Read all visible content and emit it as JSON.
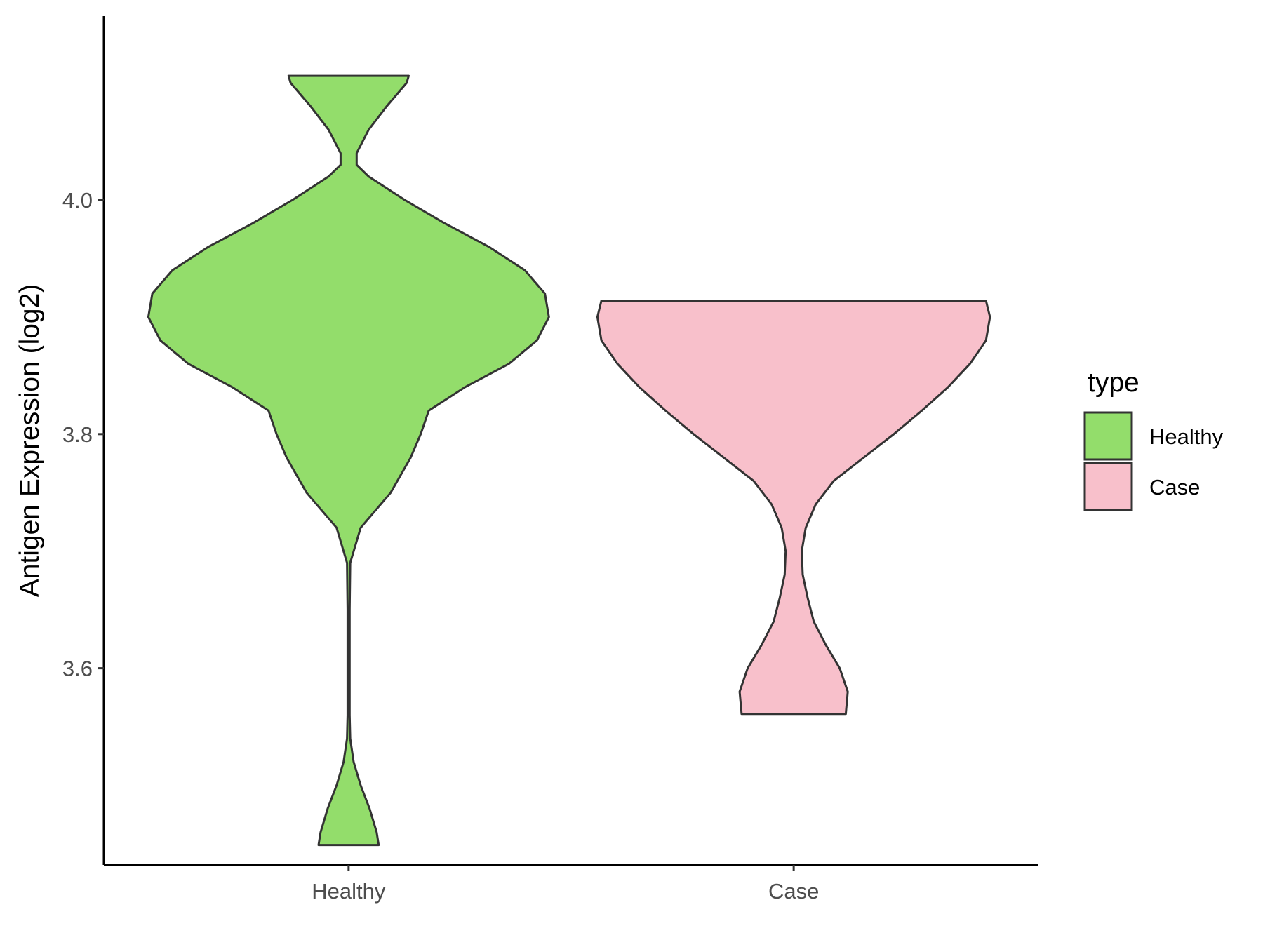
{
  "chart_data": {
    "type": "violin",
    "xlabel": "",
    "ylabel": "Antigen Expression (log2)",
    "categories": [
      "Healthy",
      "Case"
    ],
    "y_ticks": [
      "3.6",
      "3.8",
      "4.0"
    ],
    "y_tick_values": [
      3.6,
      3.8,
      4.0
    ],
    "ylim": [
      3.432,
      4.157
    ],
    "grid": false,
    "legend": {
      "title": "type",
      "position": "right",
      "entries": [
        {
          "label": "Healthy",
          "color": "#93DD6B"
        },
        {
          "label": "Case",
          "color": "#F8C0CB"
        }
      ]
    },
    "series": [
      {
        "category": "Healthy",
        "color": "#93DD6B",
        "y_min": 3.449,
        "y_max": 4.106,
        "profile": [
          [
            3.449,
            0.15
          ],
          [
            3.46,
            0.14
          ],
          [
            3.48,
            0.105
          ],
          [
            3.5,
            0.06
          ],
          [
            3.52,
            0.025
          ],
          [
            3.54,
            0.008
          ],
          [
            3.56,
            0.005
          ],
          [
            3.6,
            0.005
          ],
          [
            3.65,
            0.005
          ],
          [
            3.69,
            0.008
          ],
          [
            3.72,
            0.06
          ],
          [
            3.75,
            0.21
          ],
          [
            3.78,
            0.31
          ],
          [
            3.8,
            0.36
          ],
          [
            3.82,
            0.4
          ],
          [
            3.84,
            0.58
          ],
          [
            3.86,
            0.8
          ],
          [
            3.88,
            0.94
          ],
          [
            3.9,
            1.0
          ],
          [
            3.92,
            0.98
          ],
          [
            3.94,
            0.88
          ],
          [
            3.96,
            0.7
          ],
          [
            3.98,
            0.48
          ],
          [
            4.0,
            0.28
          ],
          [
            4.02,
            0.1
          ],
          [
            4.03,
            0.04
          ],
          [
            4.04,
            0.04
          ],
          [
            4.06,
            0.1
          ],
          [
            4.08,
            0.19
          ],
          [
            4.1,
            0.29
          ],
          [
            4.106,
            0.3
          ]
        ]
      },
      {
        "category": "Case",
        "color": "#F8C0CB",
        "y_min": 3.561,
        "y_max": 3.914,
        "profile": [
          [
            3.561,
            0.26
          ],
          [
            3.58,
            0.27
          ],
          [
            3.6,
            0.23
          ],
          [
            3.62,
            0.16
          ],
          [
            3.64,
            0.1
          ],
          [
            3.66,
            0.07
          ],
          [
            3.68,
            0.045
          ],
          [
            3.7,
            0.04
          ],
          [
            3.72,
            0.06
          ],
          [
            3.74,
            0.11
          ],
          [
            3.76,
            0.2
          ],
          [
            3.78,
            0.35
          ],
          [
            3.8,
            0.5
          ],
          [
            3.82,
            0.64
          ],
          [
            3.84,
            0.77
          ],
          [
            3.86,
            0.88
          ],
          [
            3.88,
            0.96
          ],
          [
            3.9,
            0.98
          ],
          [
            3.914,
            0.96
          ]
        ]
      }
    ]
  }
}
